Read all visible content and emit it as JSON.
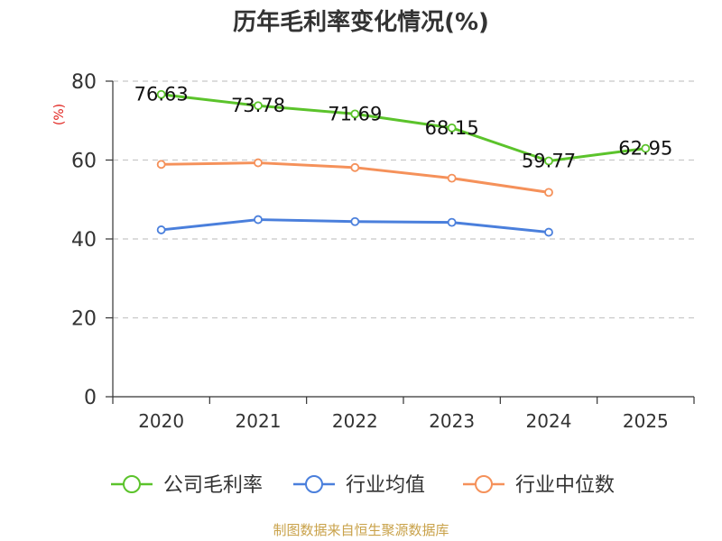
{
  "chart_data": {
    "type": "line",
    "title": "历年毛利率变化情况(%)",
    "ylabel": "(%)",
    "xlabel": "",
    "categories": [
      "2020",
      "2021",
      "2022",
      "2023",
      "2024",
      "2025"
    ],
    "ylim": [
      0,
      80
    ],
    "yticks": [
      "0",
      "20",
      "40",
      "60",
      "80"
    ],
    "grid": true,
    "legend_position": "bottom",
    "series": [
      {
        "name": "公司毛利率",
        "color": "#5bc32b",
        "values": [
          76.63,
          73.78,
          71.69,
          68.15,
          59.77,
          62.95
        ],
        "labels": [
          "76.63",
          "73.78",
          "71.69",
          "68.15",
          "59.77",
          "62.95"
        ]
      },
      {
        "name": "行业均值",
        "color": "#4a7fdc",
        "values": [
          42.3,
          44.9,
          44.4,
          44.2,
          41.7,
          null
        ]
      },
      {
        "name": "行业中位数",
        "color": "#f5915a",
        "values": [
          58.9,
          59.3,
          58.1,
          55.4,
          51.8,
          null
        ]
      }
    ]
  },
  "source": "制图数据来自恒生聚源数据库"
}
